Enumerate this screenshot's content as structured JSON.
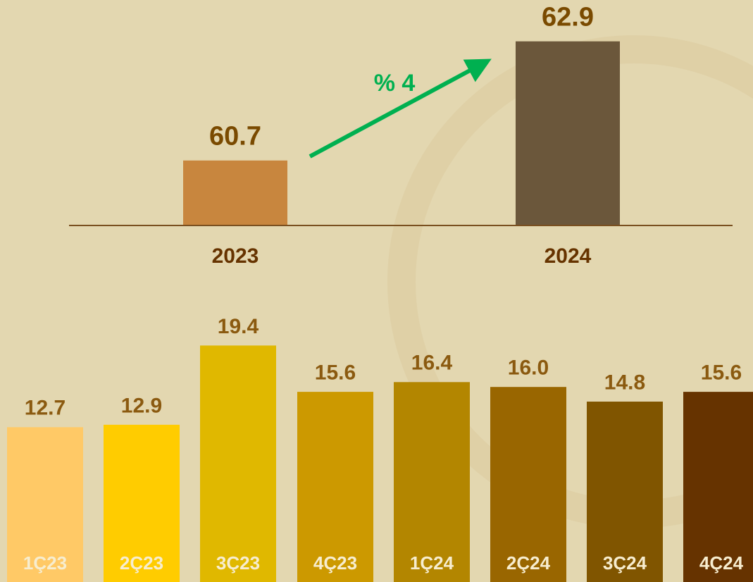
{
  "chart_data": [
    {
      "type": "bar",
      "categories": [
        "2023",
        "2024"
      ],
      "values": [
        60.7,
        62.9
      ],
      "colors": [
        "#C8863E",
        "#6B573B"
      ],
      "ylim": [
        59.5,
        63.0
      ],
      "annotation": "% 4",
      "annotation_color": "#00B050"
    },
    {
      "type": "bar",
      "categories": [
        "1Ç23",
        "2Ç23",
        "3Ç23",
        "4Ç23",
        "1Ç24",
        "2Ç24",
        "3Ç24",
        "4Ç24"
      ],
      "values": [
        12.7,
        12.9,
        19.4,
        15.6,
        16.4,
        16.0,
        14.8,
        15.6
      ],
      "value_labels": [
        "12.7",
        "12.9",
        "19.4",
        "15.6",
        "16.4",
        "16.0",
        "14.8",
        "15.6"
      ],
      "colors": [
        "#FFC966",
        "#FFCC00",
        "#E0B800",
        "#CC9900",
        "#B38600",
        "#996600",
        "#805500",
        "#663300"
      ],
      "ylim": [
        0,
        20
      ]
    }
  ]
}
